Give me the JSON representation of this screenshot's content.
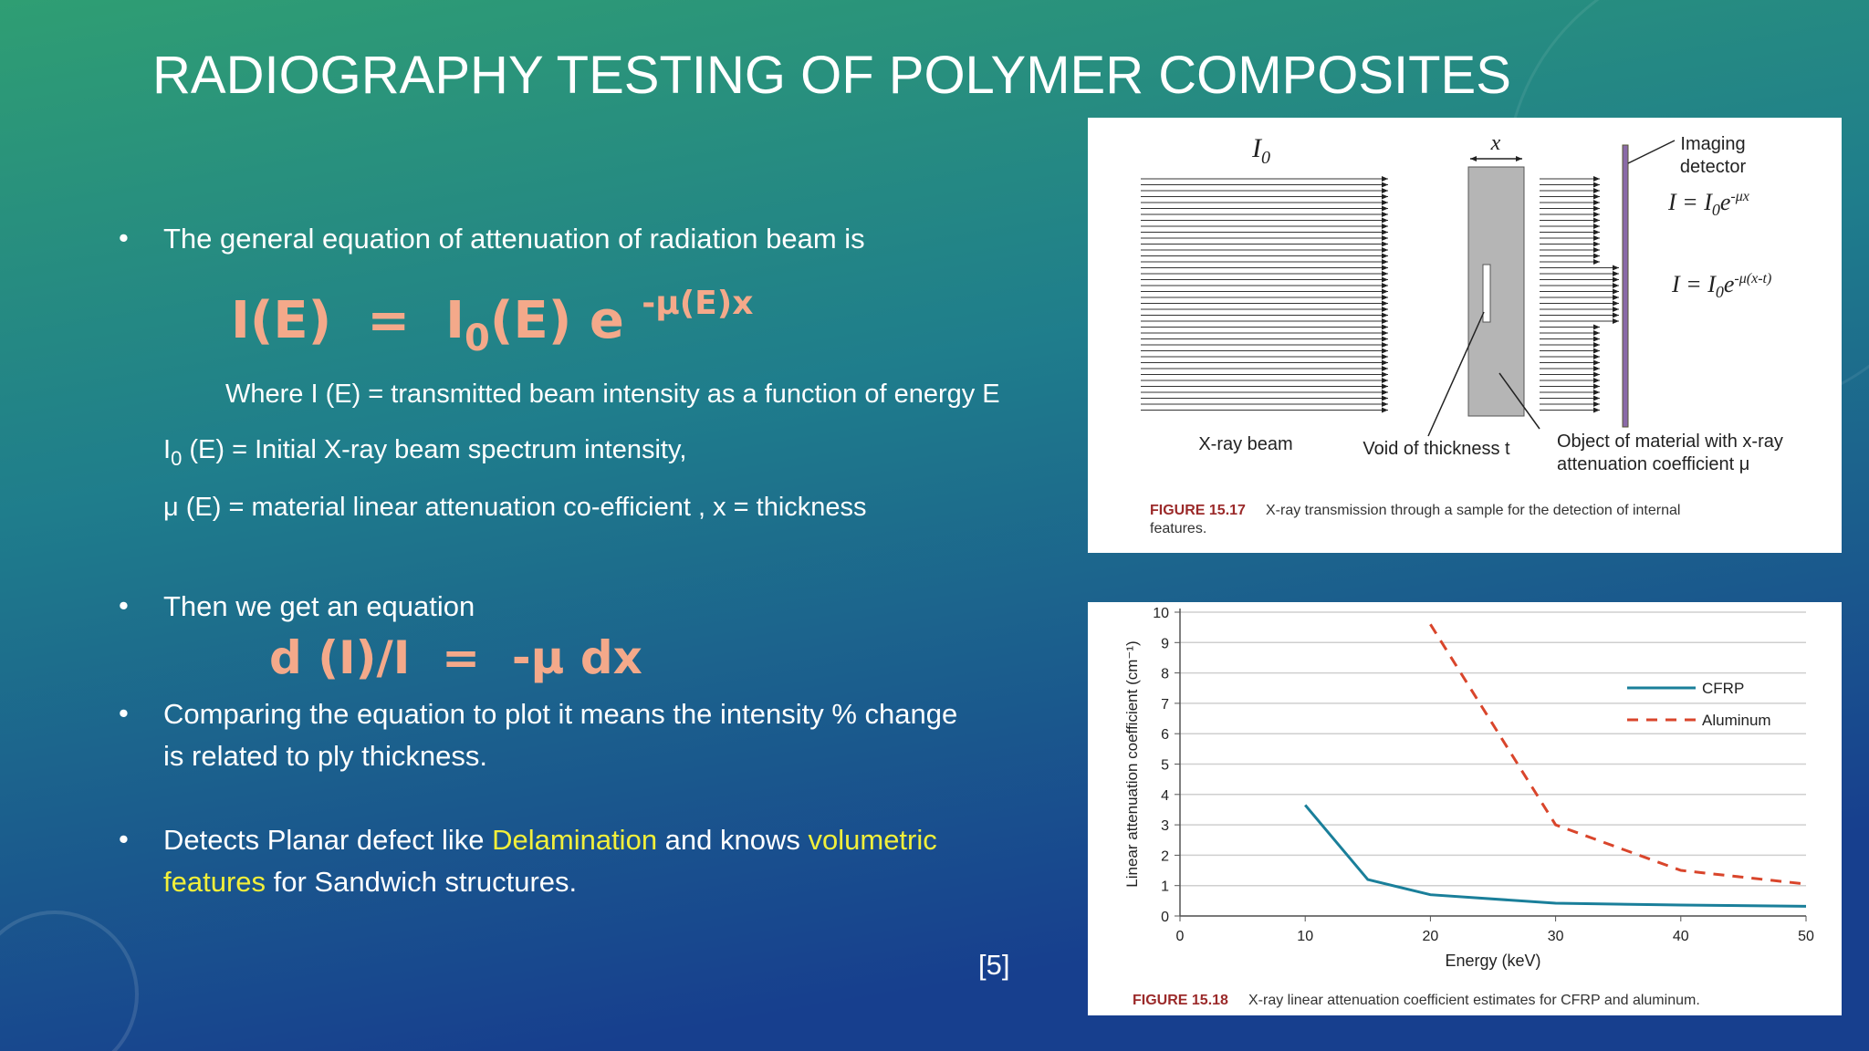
{
  "slide": {
    "title": "RADIOGRAPHY TESTING OF POLYMER COMPOSITES",
    "bullet1": "The general equation of attenuation of radiation beam is",
    "equation1": {
      "lhs": "I(E)  =  I",
      "sub": "0",
      "rhs": "(E) e ",
      "sup": "-μ(E)x"
    },
    "where_line": "Where I (E) = transmitted beam intensity as a function of energy E",
    "i0_line": {
      "symbol": "I",
      "sub": "0",
      "text": " (E) = Initial X-ray beam spectrum intensity,"
    },
    "mu_line": "μ (E) = material linear attenuation co-efficient , x = thickness",
    "bullet2": "Then we get an equation",
    "equation2": "d (I)/I  =  -μ dx",
    "bullet3": [
      "Comparing the equation to plot it means the intensity % change",
      "is related to ply thickness."
    ],
    "bullet4": {
      "line1": [
        "Detects Planar defect like ",
        "Delamination",
        " and knows ",
        "volumetric"
      ],
      "line2": [
        "features",
        " for Sandwich structures."
      ]
    },
    "reference": "[5]"
  },
  "figure1": {
    "i0": {
      "symbol": "I",
      "sub": "0"
    },
    "thickness_label": "x",
    "detector_label": [
      "Imaging",
      "detector"
    ],
    "eq_a": {
      "lhs": "I = I",
      "sub": "0",
      "base": "e",
      "sup": "-μx"
    },
    "eq_b": {
      "lhs": "I = I",
      "sub": "0",
      "base": "e",
      "sup": "-μ(x-t)"
    },
    "beam_label": "X-ray beam",
    "void_label": "Void of thickness t",
    "object_label": [
      "Object of material with x-ray",
      "attenuation coefficient μ"
    ],
    "caption_label": "FIGURE 15.17",
    "caption": [
      "X-ray transmission through a sample for the detection of internal",
      "features."
    ]
  },
  "chart_data": {
    "type": "line",
    "xlabel": "Energy (keV)",
    "ylabel": "Linear attenuation coefficient (cm⁻¹)",
    "caption_label": "FIGURE 15.18",
    "caption": "X-ray linear attenuation coefficient estimates for CFRP and aluminum.",
    "x": [
      10,
      15,
      20,
      30,
      40,
      50
    ],
    "series": [
      {
        "name": "CFRP",
        "color": "#1a7f9a",
        "dashed": false,
        "values": [
          3.65,
          1.2,
          0.7,
          0.42,
          0.36,
          0.32
        ]
      },
      {
        "name": "Aluminum",
        "color": "#d9452b",
        "dashed": true,
        "values": [
          null,
          null,
          9.6,
          3.0,
          1.5,
          1.05
        ]
      }
    ],
    "xlim": [
      0,
      50
    ],
    "xticks": [
      0,
      10,
      20,
      30,
      40,
      50
    ],
    "ylim": [
      0,
      10
    ],
    "yticks": [
      0,
      1,
      2,
      3,
      4,
      5,
      6,
      7,
      8,
      9,
      10
    ],
    "grid": true
  }
}
